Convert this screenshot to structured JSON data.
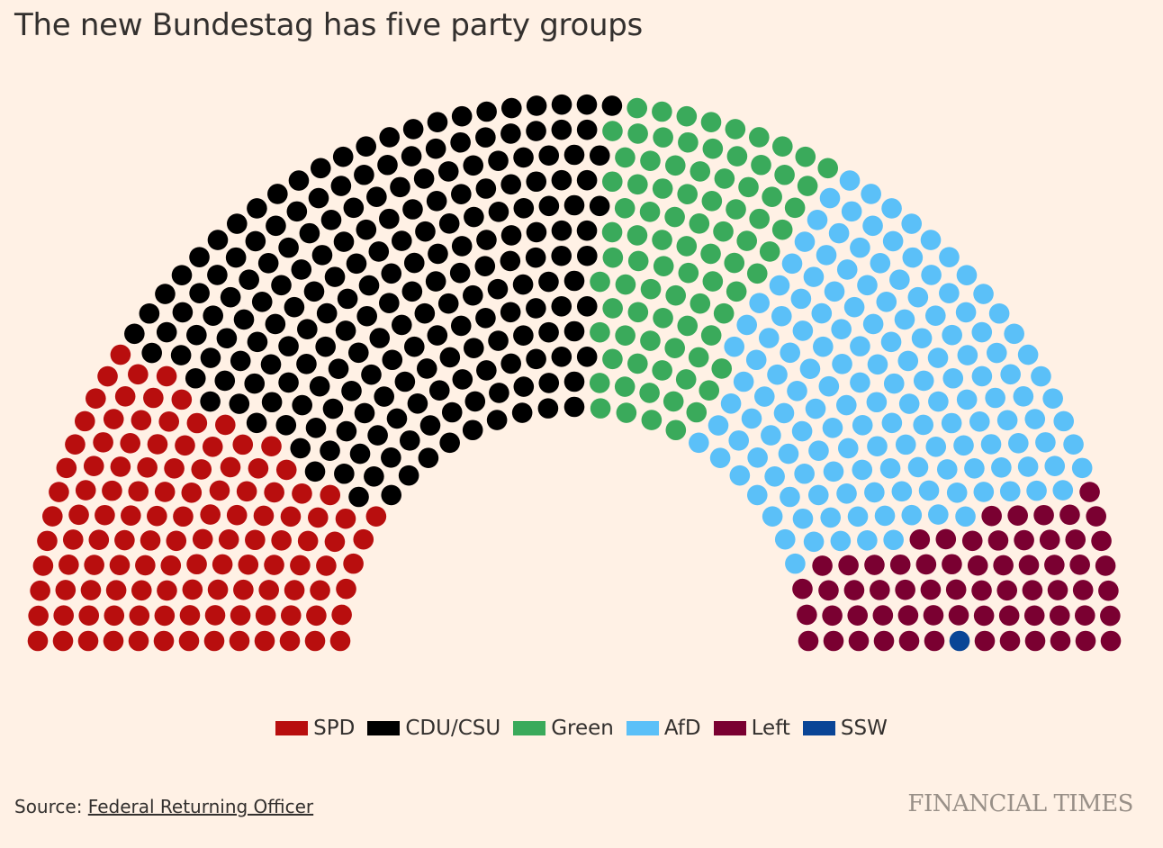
{
  "title": "The new Bundestag has five party groups",
  "source": {
    "label": "Source: ",
    "link_text": "Federal Returning Officer"
  },
  "brand": "FINANCIAL TIMES",
  "colors": {
    "background": "#fff1e5"
  },
  "chart_data": {
    "type": "parliament",
    "title": "The new Bundestag has five party groups",
    "total_seats": 630,
    "rows": 13,
    "series": [
      {
        "name": "SPD",
        "seats": 120,
        "color": "#b80e0e"
      },
      {
        "name": "CDU/CSU",
        "seats": 208,
        "color": "#000000"
      },
      {
        "name": "Green",
        "seats": 85,
        "color": "#3aaa5b"
      },
      {
        "name": "AfD",
        "seats": 152,
        "color": "#5bc0f8"
      },
      {
        "name": "Left",
        "seats": 64,
        "color": "#7a0031"
      },
      {
        "name": "SSW",
        "seats": 1,
        "color": "#0a4596"
      }
    ],
    "legend": [
      "SPD",
      "CDU/CSU",
      "Green",
      "AfD",
      "Left",
      "SSW"
    ],
    "legend_position": "bottom-center"
  }
}
